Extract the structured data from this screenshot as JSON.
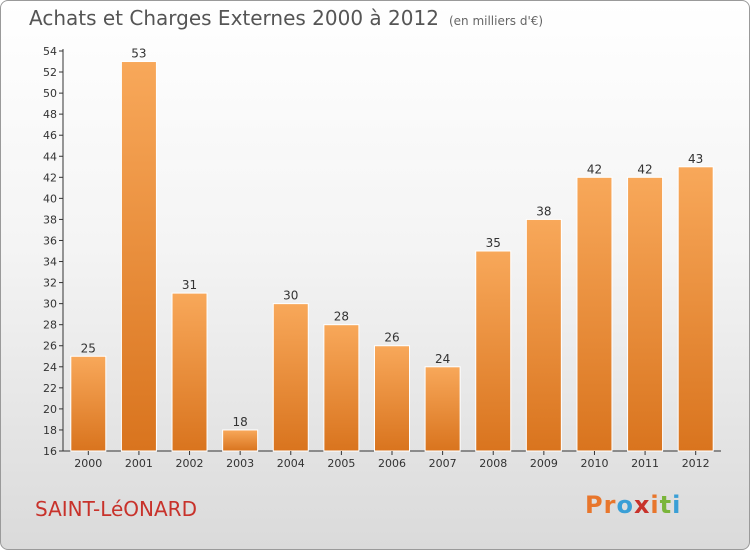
{
  "header": {
    "title": "Achats et Charges Externes 2000 à 2012",
    "subtitle": "(en milliers d'€)"
  },
  "footer": {
    "commune": "SAINT-LéONARD",
    "brand": "Proxiti",
    "brand_letter_colors": [
      "#e8762c",
      "#e8762c",
      "#3a9fd6",
      "#c8322b",
      "#e8762c",
      "#7ab53a",
      "#3a9fd6"
    ]
  },
  "chart_data": {
    "type": "bar",
    "categories": [
      "2000",
      "2001",
      "2002",
      "2003",
      "2004",
      "2005",
      "2006",
      "2007",
      "2008",
      "2009",
      "2010",
      "2011",
      "2012"
    ],
    "values": [
      25,
      53,
      31,
      18,
      30,
      28,
      26,
      24,
      35,
      38,
      42,
      42,
      43
    ],
    "data_labels": [
      "25",
      "53",
      "31",
      "18",
      "30",
      "28",
      "26",
      "24",
      "35",
      "38",
      "42",
      "42",
      "43"
    ],
    "title": "Achats et Charges Externes 2000 à 2012",
    "ylim": [
      16,
      54
    ],
    "yticks": [
      "16",
      "18",
      "20",
      "22",
      "24",
      "26",
      "28",
      "30",
      "32",
      "34",
      "36",
      "38",
      "40",
      "42",
      "44",
      "46",
      "48",
      "50",
      "52",
      "54"
    ],
    "grid": false,
    "colors": {
      "bar_light": "#f8a85a",
      "bar_dark": "#d9741e",
      "axis": "#333333",
      "label": "#333333"
    }
  }
}
